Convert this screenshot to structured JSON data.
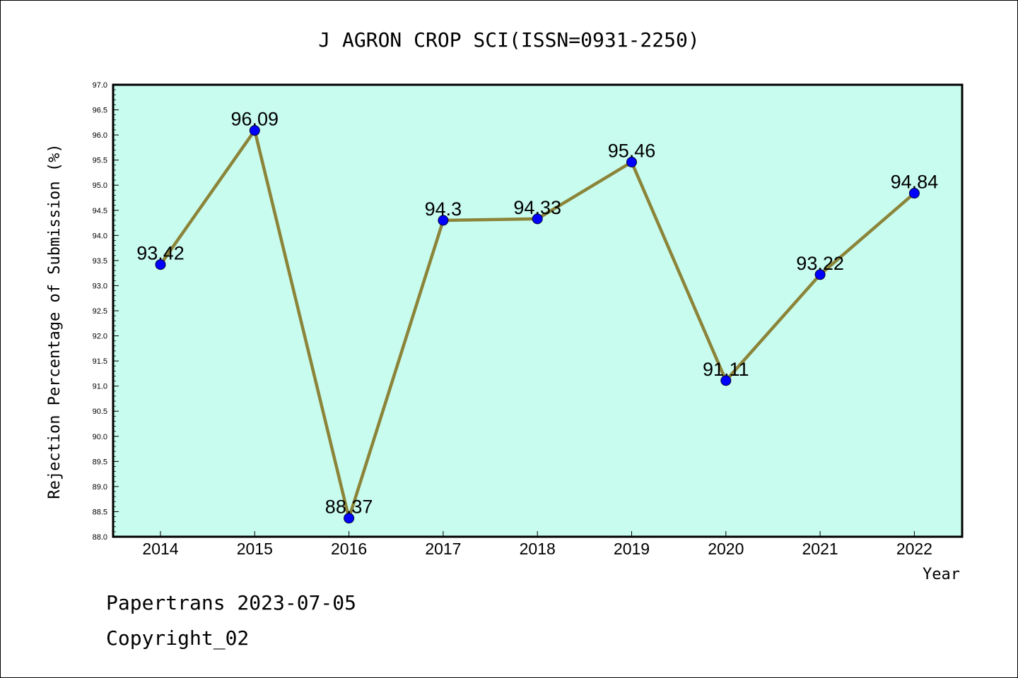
{
  "chart_data": {
    "type": "line",
    "title": "J AGRON CROP SCI(ISSN=0931-2250)",
    "xlabel": "Year",
    "ylabel": "Rejection Percentage of Submission (%)",
    "categories": [
      "2014",
      "2015",
      "2016",
      "2017",
      "2018",
      "2019",
      "2020",
      "2021",
      "2022"
    ],
    "values": [
      93.42,
      96.09,
      88.37,
      94.3,
      94.33,
      95.46,
      91.11,
      93.22,
      94.84
    ],
    "data_labels": [
      "93.42",
      "96.09",
      "88.37",
      "94.3",
      "94.33",
      "95.46",
      "91.11",
      "93.22",
      "94.84"
    ],
    "ylim": [
      88.0,
      97.0
    ],
    "yticks": [
      "88.0",
      "88.5",
      "89.0",
      "89.5",
      "90.0",
      "90.5",
      "91.0",
      "91.5",
      "92.0",
      "92.5",
      "93.0",
      "93.5",
      "94.0",
      "94.5",
      "95.0",
      "95.5",
      "96.0",
      "96.5",
      "97.0"
    ],
    "grid": false,
    "colors": {
      "plot_background": "#c8fcee",
      "line": "#8b8439",
      "marker": "#0000ff"
    }
  },
  "footer": {
    "line1": "Papertrans 2023-07-05",
    "line2": "Copyright_02"
  }
}
